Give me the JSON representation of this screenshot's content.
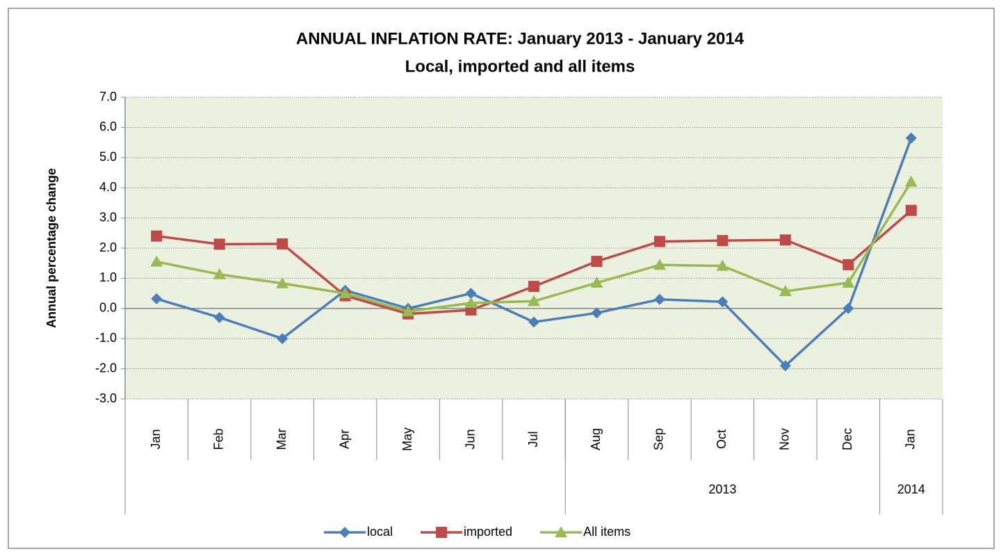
{
  "chart_data": {
    "type": "line",
    "title": "ANNUAL INFLATION RATE: January 2013 - January 2014",
    "subtitle": "Local, imported and all items",
    "y_label": "Annual percentage change",
    "categories": [
      "Jan",
      "Feb",
      "Mar",
      "Apr",
      "May",
      "Jun",
      "Jul",
      "Aug",
      "Sep",
      "Oct",
      "Nov",
      "Dec",
      "Jan"
    ],
    "category_groups": [
      {
        "label": null,
        "count": 7
      },
      {
        "label": "2013",
        "count": 5
      },
      {
        "label": "2014",
        "count": 1
      }
    ],
    "series": [
      {
        "name": "local",
        "color": "#4a7ebb",
        "marker": "diamond",
        "values": [
          0.32,
          -0.3,
          -1.0,
          0.6,
          0.0,
          0.5,
          -0.45,
          -0.15,
          0.3,
          0.22,
          -1.9,
          0.0,
          5.65
        ]
      },
      {
        "name": "imported",
        "color": "#be4b48",
        "marker": "square",
        "values": [
          2.4,
          2.13,
          2.14,
          0.42,
          -0.18,
          -0.05,
          0.73,
          1.56,
          2.22,
          2.25,
          2.27,
          1.45,
          3.25
        ]
      },
      {
        "name": "All items",
        "color": "#98b954",
        "marker": "triangle",
        "values": [
          1.55,
          1.13,
          0.83,
          0.5,
          -0.1,
          0.18,
          0.24,
          0.85,
          1.44,
          1.41,
          0.57,
          0.85,
          4.2
        ]
      }
    ],
    "ylim": [
      -3,
      7
    ],
    "yticks": [
      {
        "value": -3,
        "label": "-3.0"
      },
      {
        "value": -2,
        "label": "-2.0"
      },
      {
        "value": -1,
        "label": "-1.0"
      },
      {
        "value": 0,
        "label": "0.0"
      },
      {
        "value": 1,
        "label": "1.0"
      },
      {
        "value": 2,
        "label": "2.0"
      },
      {
        "value": 3,
        "label": "3.0"
      },
      {
        "value": 4,
        "label": "4.0"
      },
      {
        "value": 5,
        "label": "5.0"
      },
      {
        "value": 6,
        "label": "6.0"
      },
      {
        "value": 7,
        "label": "7.0"
      }
    ],
    "grid": true,
    "legend": "bottom",
    "plot_background": "#ebf1de"
  }
}
